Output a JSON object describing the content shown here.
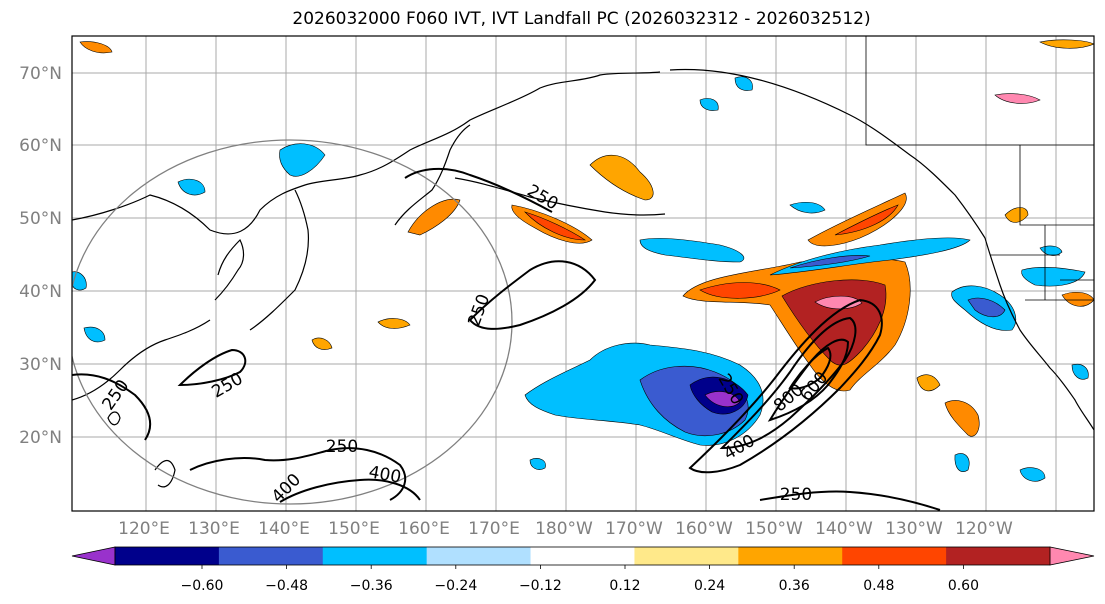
{
  "title": "2026032000 F060 IVT, IVT Landfall PC (2026032312 - 2026032512)",
  "lat_labels": [
    "70°N",
    "60°N",
    "50°N",
    "40°N",
    "30°N",
    "20°N"
  ],
  "lon_labels": [
    "120°E",
    "130°E",
    "140°E",
    "150°E",
    "160°E",
    "170°E",
    "180°W",
    "170°W",
    "160°W",
    "150°W",
    "140°W",
    "130°W",
    "120°W"
  ],
  "colorbar": {
    "ticks": [
      "−0.60",
      "−0.48",
      "−0.36",
      "−0.24",
      "−0.12",
      "0.12",
      "0.24",
      "0.36",
      "0.48",
      "0.60"
    ],
    "colors": [
      "#9932cc",
      "#00008b",
      "#3a5bd0",
      "#00bfff",
      "#b0e0ff",
      "#ffffff",
      "#ffe98a",
      "#ffa500",
      "#ff4500",
      "#b22222",
      "#ff88b0"
    ]
  },
  "contour_labels": [
    "250",
    "250",
    "250",
    "250",
    "250",
    "250",
    "250",
    "400",
    "400",
    "400",
    "600",
    "800"
  ]
}
